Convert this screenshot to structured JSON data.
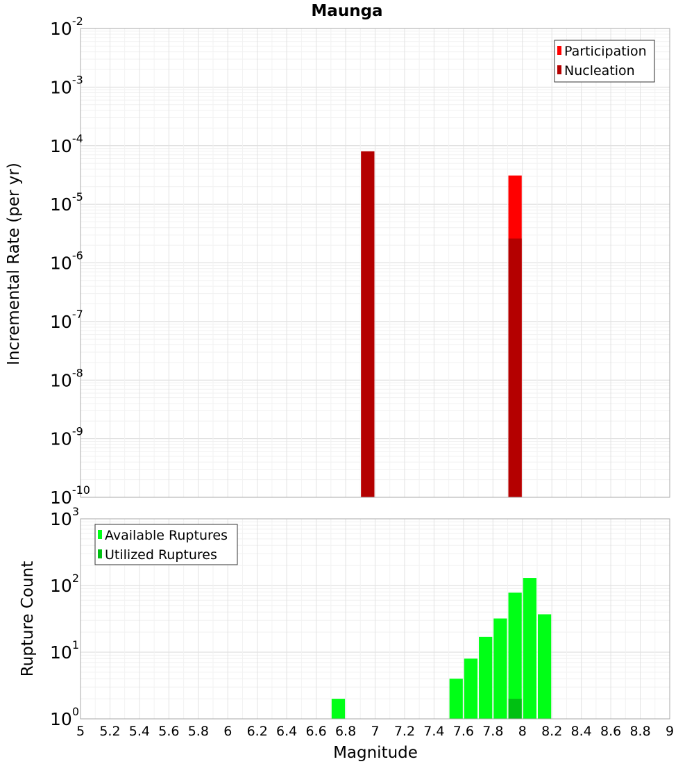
{
  "chart_data": [
    {
      "type": "bar",
      "title": "Maunga",
      "ylabel": "Incremental Rate (per yr)",
      "yscale": "log",
      "ylim_exponents": [
        -10,
        -2
      ],
      "y_tick_exponents": [
        "-2",
        "-3",
        "-4",
        "-5",
        "-6",
        "-7",
        "-8",
        "-9",
        "-10"
      ],
      "xlim": [
        5,
        9
      ],
      "bar_width": 0.1,
      "grid": true,
      "legend_position": "top-right",
      "series": [
        {
          "name": "Participation",
          "color": "#ff0000",
          "x": [
            6.95,
            7.95
          ],
          "values": [
            8e-05,
            3.1e-05
          ]
        },
        {
          "name": "Nucleation",
          "color": "#b40000",
          "x": [
            6.95,
            7.95
          ],
          "values": [
            8e-05,
            2.6e-06
          ]
        }
      ]
    },
    {
      "type": "bar",
      "ylabel": "Rupture Count",
      "xlabel": "Magnitude",
      "yscale": "log",
      "ylim_exponents": [
        0,
        3
      ],
      "y_tick_exponents": [
        "3",
        "2",
        "1",
        "0"
      ],
      "xlim": [
        5,
        9
      ],
      "x_ticks": [
        "5",
        "5.2",
        "5.4",
        "5.6",
        "5.8",
        "6",
        "6.2",
        "6.4",
        "6.6",
        "6.8",
        "7",
        "7.2",
        "7.4",
        "7.6",
        "7.8",
        "8",
        "8.2",
        "8.4",
        "8.6",
        "8.8",
        "9"
      ],
      "bar_width": 0.1,
      "grid": true,
      "legend_position": "top-left",
      "series": [
        {
          "name": "Available Ruptures",
          "color": "#00ff16",
          "x": [
            6.75,
            7.35,
            7.45,
            7.55,
            7.65,
            7.75,
            7.85,
            7.95,
            8.05,
            8.15
          ],
          "values": [
            2,
            1,
            1,
            4,
            8,
            17,
            32,
            78,
            130,
            37
          ]
        },
        {
          "name": "Utilized Ruptures",
          "color": "#00c012",
          "x": [
            6.95,
            7.95
          ],
          "values": [
            1,
            2
          ]
        }
      ]
    }
  ]
}
